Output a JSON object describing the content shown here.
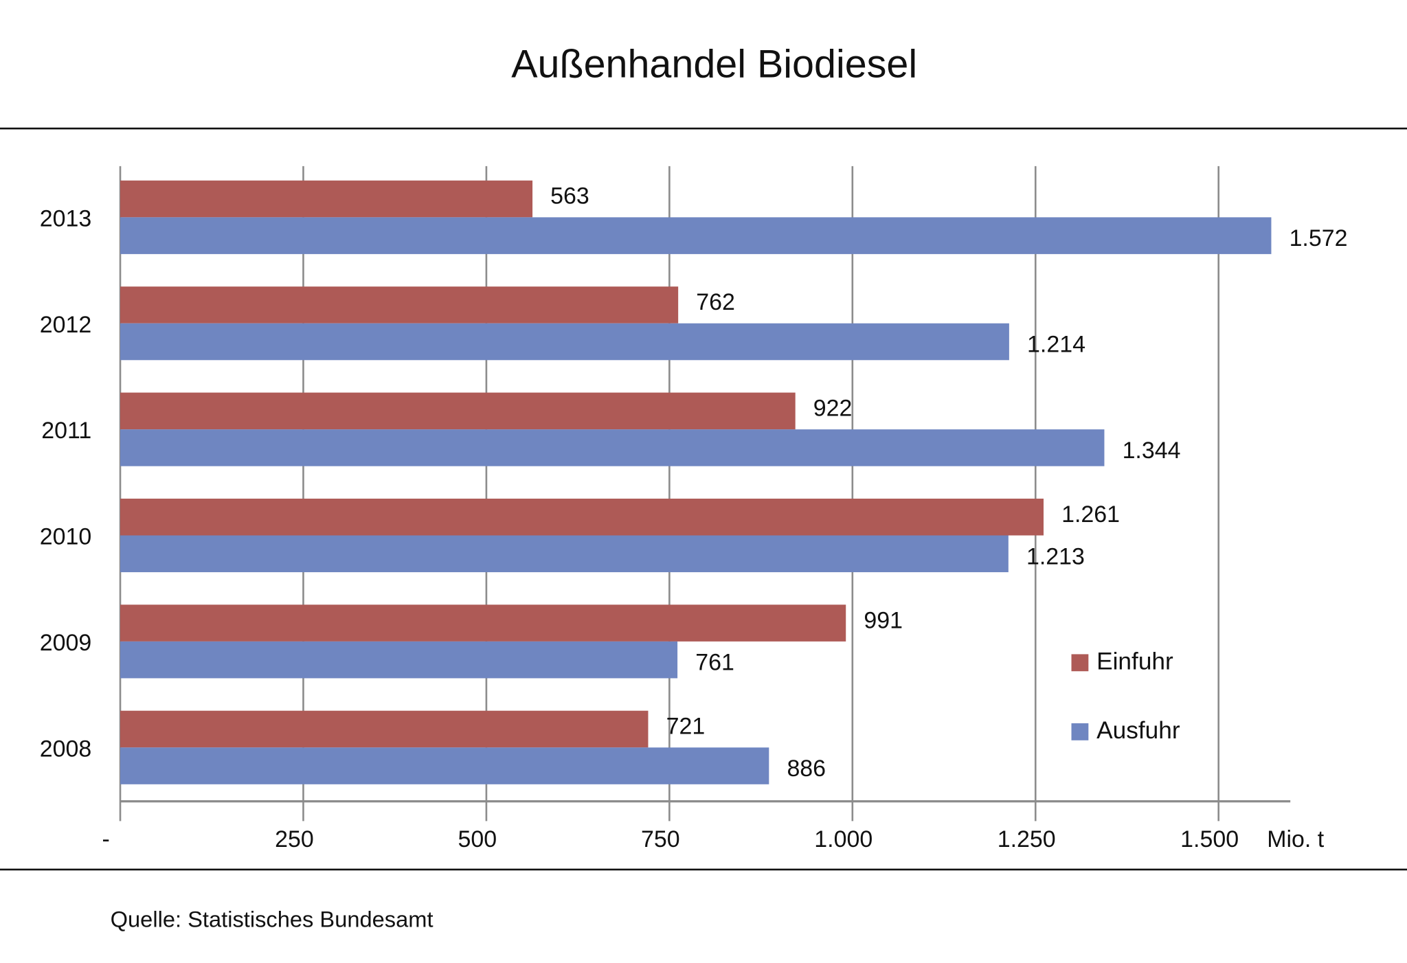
{
  "chart_data": {
    "type": "bar",
    "orientation": "horizontal",
    "title": "Außenhandel Biodiesel",
    "categories": [
      "2013",
      "2012",
      "2011",
      "2010",
      "2009",
      "2008"
    ],
    "series": [
      {
        "name": "Einfuhr",
        "color": "#AE5A56",
        "values": [
          563,
          762,
          922,
          1261,
          991,
          721
        ],
        "labels": [
          "563",
          "762",
          "922",
          "1.261",
          "991",
          "721"
        ]
      },
      {
        "name": "Ausfuhr",
        "color": "#6F86C1",
        "values": [
          1572,
          1214,
          1344,
          1213,
          761,
          886
        ],
        "labels": [
          "1.572",
          "1.214",
          "1.344",
          "1.213",
          "761",
          "886"
        ]
      }
    ],
    "xlim": [
      0,
      1600
    ],
    "xticks": [
      0,
      250,
      500,
      750,
      1000,
      1250,
      1500
    ],
    "xtick_labels": [
      "-",
      "250",
      "500",
      "750",
      "1.000",
      "1.250",
      "1.500"
    ],
    "xlabel": "Mio. t",
    "ylabel": "",
    "grid": true,
    "legend_position": "bottom-right"
  },
  "source": "Quelle: Statistisches Bundesamt"
}
